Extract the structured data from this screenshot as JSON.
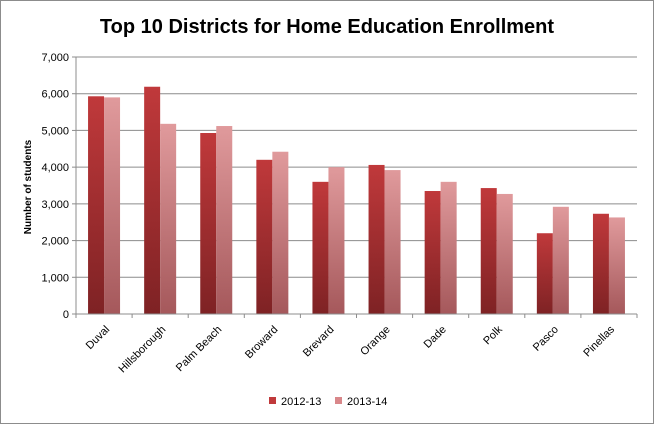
{
  "chart_data": {
    "type": "bar",
    "title": "Top 10 Districts for Home Education Enrollment",
    "xlabel": "",
    "ylabel": "Number of students",
    "ylim": [
      0,
      7000
    ],
    "ytick_step": 1000,
    "ytick_labels": [
      "0",
      "1,000",
      "2,000",
      "3,000",
      "4,000",
      "5,000",
      "6,000",
      "7,000"
    ],
    "grid": true,
    "legend_position": "bottom",
    "categories": [
      "Duval",
      "Hillsborough",
      "Palm Beach",
      "Broward",
      "Brevard",
      "Orange",
      "Dade",
      "Polk",
      "Pasco",
      "Pinellas"
    ],
    "series": [
      {
        "name": "2012-13",
        "color": "#c0393b",
        "values": [
          5930,
          6190,
          4930,
          4200,
          3600,
          4060,
          3350,
          3430,
          2200,
          2730
        ]
      },
      {
        "name": "2013-14",
        "color": "#d9878a",
        "values": [
          5900,
          5180,
          5120,
          4420,
          4000,
          3920,
          3600,
          3270,
          2920,
          2630
        ]
      }
    ]
  }
}
